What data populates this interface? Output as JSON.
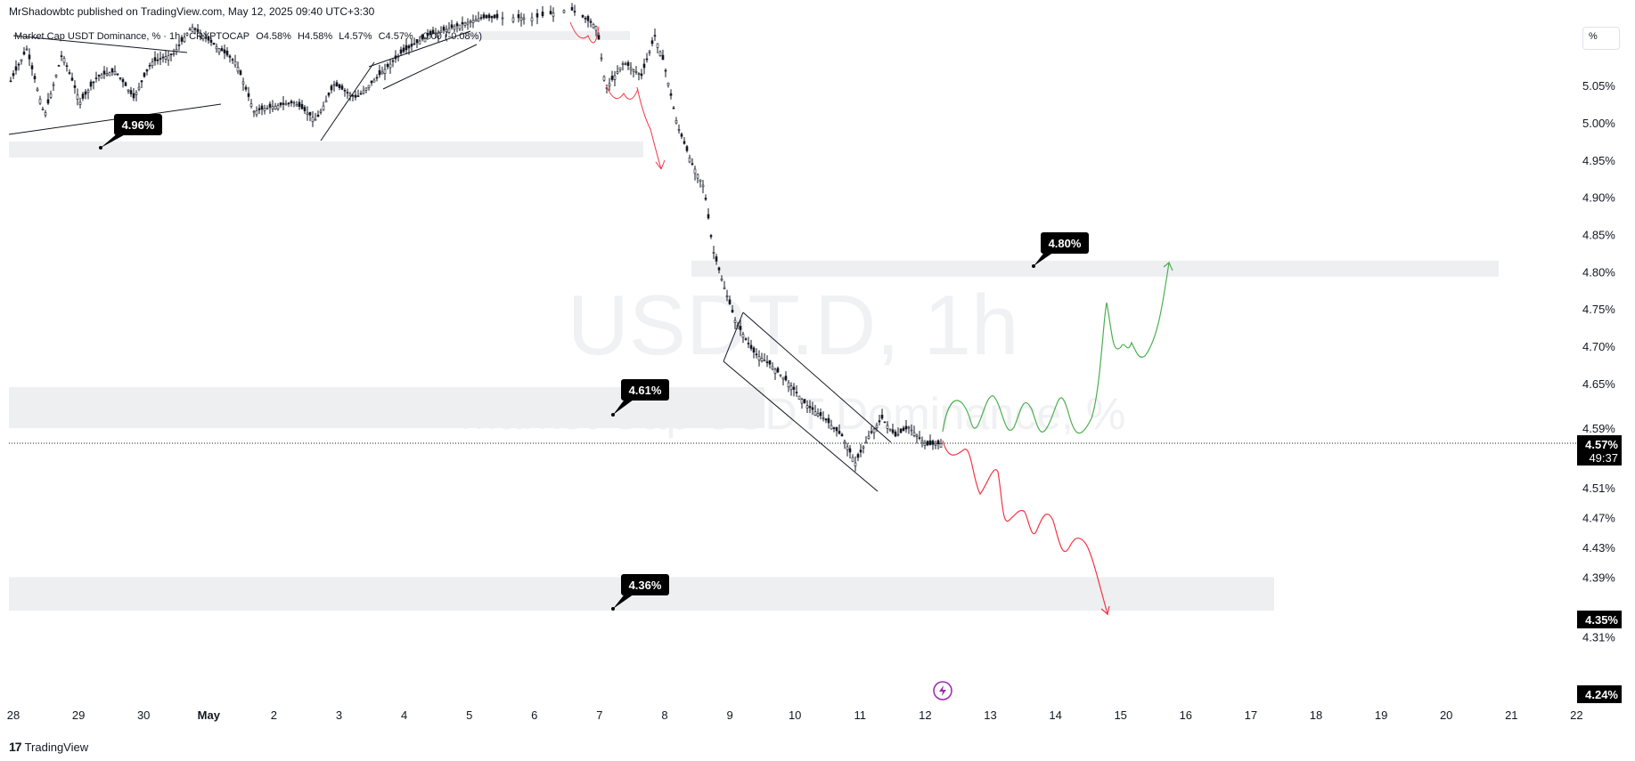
{
  "header": {
    "published": "MrShadowbtc published on TradingView.com, May 12, 2025 09:40 UTC+3:30"
  },
  "legend": {
    "title": "Market Cap USDT Dominance, %",
    "interval": "1h",
    "source": "CRYPTOCAP",
    "open": "O4.58%",
    "high": "H4.58%",
    "low": "L4.57%",
    "close": "C4.57%",
    "change": "-0.00 (-0.08%)"
  },
  "watermark": {
    "symbol": "USDT.D, 1h",
    "name": "Market Cap USDT Dominance, %"
  },
  "footer": {
    "brand": "TradingView",
    "logo": "17"
  },
  "scale_button": {
    "label": "%"
  },
  "colors": {
    "up_path": "#4caf50",
    "down_path": "#f23645",
    "zone": "#eeeff1",
    "tag": "#000000",
    "candle": "#131722"
  },
  "icons": {
    "lightning": "lightning-icon",
    "logo": "tradingview-logo-icon"
  },
  "chart_data": {
    "type": "candlestick",
    "title": "Market Cap USDT Dominance, %",
    "x_ticks": [
      "28",
      "29",
      "30",
      "May",
      "2",
      "3",
      "4",
      "5",
      "6",
      "7",
      "8",
      "9",
      "10",
      "11",
      "12",
      "13",
      "14",
      "15",
      "16",
      "17",
      "18",
      "19",
      "20",
      "21",
      "22"
    ],
    "y_ticks": [
      "5.05%",
      "5.00%",
      "4.95%",
      "4.90%",
      "4.85%",
      "4.80%",
      "4.75%",
      "4.70%",
      "4.65%",
      "4.59%",
      "4.51%",
      "4.47%",
      "4.43%",
      "4.39%",
      "4.31%"
    ],
    "y_range": [
      4.24,
      5.09
    ],
    "price_labels": [
      {
        "value": "4.57%",
        "sub": "49:37",
        "kind": "current"
      },
      {
        "value": "4.35%",
        "kind": "level"
      },
      {
        "value": "4.24%",
        "kind": "level"
      }
    ],
    "zones": [
      {
        "label": "4.96%",
        "low": 4.955,
        "high": 4.975
      },
      {
        "label": "4.80%",
        "low": 4.795,
        "high": 4.815
      },
      {
        "label": "4.61%",
        "low": 4.59,
        "high": 4.645
      },
      {
        "label": "4.36%",
        "low": 4.345,
        "high": 4.39
      }
    ],
    "current_price": 4.57,
    "projections": [
      {
        "name": "bullish",
        "target": 4.81
      },
      {
        "name": "bearish",
        "target": 4.35
      }
    ]
  }
}
